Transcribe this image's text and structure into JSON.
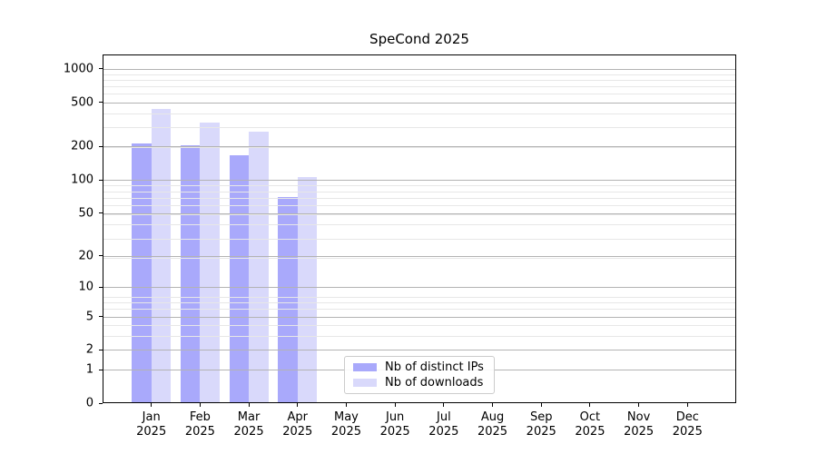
{
  "chart_data": {
    "type": "bar",
    "title": "SpeCond 2025",
    "months": [
      "Jan",
      "Feb",
      "Mar",
      "Apr",
      "May",
      "Jun",
      "Jul",
      "Aug",
      "Sep",
      "Oct",
      "Nov",
      "Dec"
    ],
    "year": "2025",
    "yscale": "log1p",
    "y_ticks": [
      0,
      1,
      2,
      5,
      10,
      20,
      50,
      100,
      200,
      500,
      1000
    ],
    "ylim": [
      0,
      1350
    ],
    "grid": {
      "major_color": "#b3b3b3",
      "minor_color": "#e7e7e7"
    },
    "series": [
      {
        "name": "Nb of distinct IPs",
        "color": "#a9a9fb",
        "values": [
          215,
          207,
          167,
          70,
          null,
          null,
          null,
          null,
          null,
          null,
          null,
          null
        ]
      },
      {
        "name": "Nb of downloads",
        "color": "#d9d9fb",
        "values": [
          435,
          327,
          273,
          107,
          null,
          null,
          null,
          null,
          null,
          null,
          null,
          null
        ]
      }
    ],
    "legend": {
      "position": "lower center-left"
    }
  }
}
